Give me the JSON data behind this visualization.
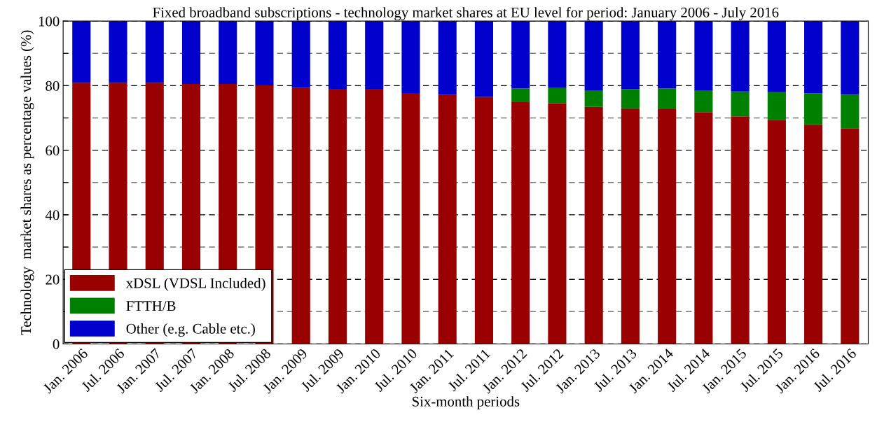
{
  "chart_data": {
    "type": "bar",
    "stacked": true,
    "title": "Fixed broadband subscriptions - technology market shares at EU level for period: January 2006 - July 2016",
    "xlabel": "Six-month periods",
    "ylabel": "Technology  market shares as percentage values (%)",
    "categories": [
      "Jan. 2006",
      "Jul. 2006",
      "Jan. 2007",
      "Jul. 2007",
      "Jan. 2008",
      "Jul. 2008",
      "Jan. 2009",
      "Jul. 2009",
      "Jan. 2010",
      "Jul. 2010",
      "Jan. 2011",
      "Jul. 2011",
      "Jan. 2012",
      "Jul. 2012",
      "Jan. 2013",
      "Jul. 2013",
      "Jan. 2014",
      "Jul. 2014",
      "Jan. 2015",
      "Jul. 2015",
      "Jan. 2016",
      "Jul. 2016"
    ],
    "series": [
      {
        "name": "xDSL (VDSL Included)",
        "color": "#990000",
        "values": [
          80.9,
          80.9,
          80.9,
          80.5,
          80.5,
          80.1,
          79.4,
          79.0,
          79.0,
          77.7,
          77.2,
          76.5,
          74.9,
          74.5,
          73.4,
          73.0,
          72.7,
          71.8,
          70.5,
          69.4,
          67.9,
          66.8
        ]
      },
      {
        "name": "FTTH/B",
        "color": "#008000",
        "values": [
          null,
          null,
          null,
          null,
          null,
          null,
          null,
          null,
          null,
          null,
          null,
          null,
          4.2,
          4.8,
          5.0,
          5.9,
          6.4,
          6.6,
          7.7,
          8.6,
          9.7,
          10.5
        ]
      },
      {
        "name": "Other (e.g. Cable etc.)",
        "color": "#0000cc",
        "values": [
          19.1,
          19.1,
          19.1,
          19.5,
          19.5,
          19.9,
          20.6,
          21.0,
          21.0,
          22.3,
          22.8,
          23.5,
          20.9,
          20.7,
          21.6,
          21.1,
          20.9,
          21.6,
          21.8,
          22.0,
          22.4,
          22.7
        ]
      }
    ],
    "ylim": [
      0,
      100
    ],
    "yticks": [
      0,
      {
        "value": 10,
        "label": null
      },
      20,
      {
        "value": 30,
        "label": null
      },
      40,
      {
        "value": 50,
        "label": null
      },
      60,
      {
        "value": 70,
        "label": null
      },
      80,
      {
        "value": 90,
        "label": null
      },
      100
    ],
    "grid": "y",
    "legend": "bottom left"
  }
}
